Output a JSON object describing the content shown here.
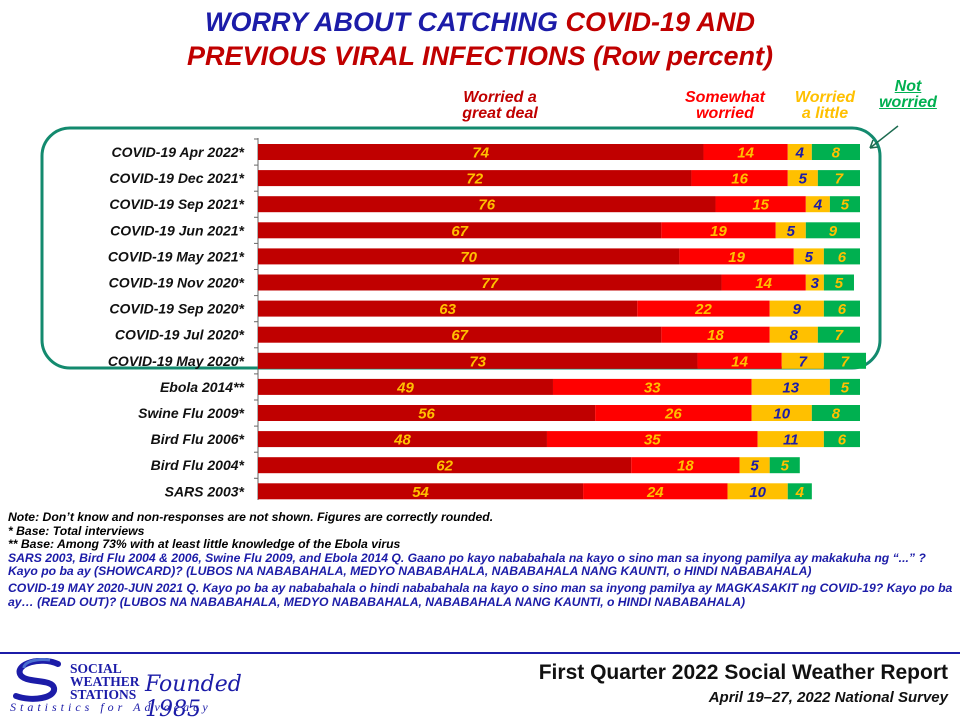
{
  "title": {
    "line1_part1": "WORRY ABOUT CATCHING ",
    "line1_part2": "COVID-19 AND",
    "line2": "PREVIOUS VIRAL INFECTIONS (Row percent)"
  },
  "colors": {
    "great_deal": "#c00000",
    "somewhat": "#ff0000",
    "little": "#ffc000",
    "not": "#00b050",
    "title_blue": "#1c1ca8",
    "frame": "#138a6e"
  },
  "legend": {
    "great_deal": "Worried a\ngreat deal",
    "somewhat": "Somewhat\nworried",
    "little": "Worried\na little",
    "not": "Not\nworried"
  },
  "chart_data": {
    "type": "bar",
    "orientation": "horizontal",
    "stacked": true,
    "xlim": [
      0,
      100
    ],
    "categories": [
      "COVID-19 Apr 2022*",
      "COVID-19 Dec 2021*",
      "COVID-19 Sep 2021*",
      "COVID-19 Jun 2021*",
      "COVID-19 May 2021*",
      "COVID-19 Nov 2020*",
      "COVID-19 Sep 2020*",
      "COVID-19 Jul 2020*",
      "COVID-19 May 2020*",
      "Ebola 2014**",
      "Swine Flu 2009*",
      "Bird Flu 2006*",
      "Bird Flu 2004*",
      "SARS 2003*"
    ],
    "series": [
      {
        "name": "Worried a great deal",
        "values": [
          74,
          72,
          76,
          67,
          70,
          77,
          63,
          67,
          73,
          49,
          56,
          48,
          62,
          54
        ]
      },
      {
        "name": "Somewhat worried",
        "values": [
          14,
          16,
          15,
          19,
          19,
          14,
          22,
          18,
          14,
          33,
          26,
          35,
          18,
          24
        ]
      },
      {
        "name": "Worried a little",
        "values": [
          4,
          5,
          4,
          5,
          5,
          3,
          9,
          8,
          7,
          13,
          10,
          11,
          5,
          10
        ]
      },
      {
        "name": "Not worried",
        "values": [
          8,
          7,
          5,
          9,
          6,
          5,
          6,
          7,
          7,
          5,
          8,
          6,
          5,
          4
        ]
      }
    ]
  },
  "notes": {
    "n1": "Note: Don’t know and non-responses are not shown. Figures are correctly rounded.",
    "n2": "* Base: Total interviews",
    "n3": "** Base: Among 73% with at least little knowledge of the Ebola virus",
    "q1_text": "SARS 2003, Bird Flu 2004 & 2006, Swine Flu 2009, and Ebola 2014 Q. Gaano po kayo nababahala na kayo o sino man sa inyong pamilya ay makakuha ng “...” ? Kayo po ba ay (SHOWCARD)?",
    "q1_options": " (LUBOS NA NABABAHALA, MEDYO NABABAHALA, NABABAHALA NANG KAUNTI, o HINDI NABABAHALA)",
    "q2_text": "COVID-19 MAY 2020-JUN 2021 Q. Kayo po ba ay nababahala o hindi nababahala na kayo o sino man sa inyong pamilya ay MAGKASAKIT ng COVID-19? Kayo po ba ay… (READ OUT)?",
    "q2_options": " (LUBOS NA NABABAHALA, MEDYO NABABAHALA, NABABAHALA NANG KAUNTI, o HINDI NABABAHALA)"
  },
  "footer": {
    "logo_line1": "SOCIAL",
    "logo_line2": "WEATHER",
    "logo_line3": "STATIONS",
    "founded": "Founded 1985",
    "tagline": "Statistics for Advocacy",
    "report_title": "First Quarter 2022 Social Weather Report",
    "report_subtitle": "April 19–27, 2022 National Survey"
  }
}
